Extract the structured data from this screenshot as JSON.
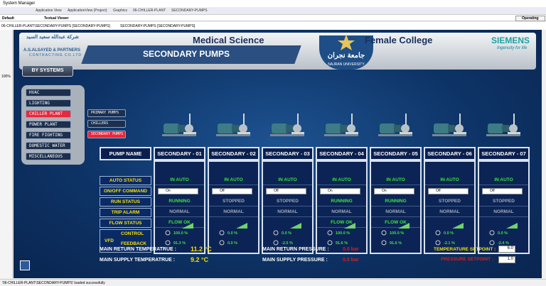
{
  "window": {
    "title": "System Manager",
    "breadcrumb": [
      "Application View",
      "ApplicationView (Project)",
      "Graphics",
      "06-CHILLER-PLANT",
      "SECONDARY-PUMPS"
    ],
    "tabs": [
      "Default",
      "Textual Viewer",
      "Operating"
    ],
    "path": [
      "06-CHILLER-PLANT\\SECONDARY-PUMPS [SECONDARY-PUMPS]",
      "SECONDARY-PUMPS [SECONDARY-PUMPS]"
    ],
    "zoom": "100%",
    "status": "'06-CHILLER-PLANT\\SECONDARY-PUMPS' loaded successfully"
  },
  "header": {
    "company_arabic": "شركة عبدالله سعيد السيد",
    "company": "A.S.ALSAYED & PARTNERS",
    "company_sub": "CONTRACTING CO.LTD",
    "left_title": "Medical Science",
    "right_title": "Female College",
    "page_title": "SECONDARY PUMPS",
    "university_arabic": "جامعة نجران",
    "university": "NAJRAN UNIVERSITY",
    "brand": "SIEMENS",
    "slogan": "Ingenuity for life"
  },
  "nav": {
    "by_systems": "BY SYSTEMS",
    "systems": [
      "HVAC",
      "LIGHTING",
      "CHILLER PLANT",
      "POWER PLANT",
      "FIRE FIGHTING",
      "DOMESTIC WATER",
      "MISCELLANEOUS"
    ],
    "active_system": 2,
    "subsystems": [
      "PRIMARY PUMPS",
      "CHILLERS",
      "SECONDARY PUMPS"
    ],
    "active_subsystem": 2
  },
  "table": {
    "corner": "PUMP NAME",
    "row_labels": [
      "AUTO STATUS",
      "ON/OFF COMMAND",
      "RUN STATUS",
      "TRIP ALARM",
      "FLOW STATUS",
      "VFD"
    ],
    "vfd_labels": [
      "CONTROL",
      "FEEDBACK"
    ],
    "pumps": [
      {
        "name": "SECONDARY - 01",
        "auto": "IN AUTO",
        "command": "On",
        "run": "RUNNING",
        "trip": "NORMAL",
        "flow": "FLOW OK",
        "control": "100.0 %",
        "feedback": "91.3 %"
      },
      {
        "name": "SECONDARY - 02",
        "auto": "IN AUTO",
        "command": "Off",
        "run": "STOPPED",
        "trip": "NORMAL",
        "flow": null,
        "control": "0.0 %",
        "feedback": "0.0 %"
      },
      {
        "name": "SECONDARY - 03",
        "auto": "IN AUTO",
        "command": "Off",
        "run": "STOPPED",
        "trip": "NORMAL",
        "flow": null,
        "control": "0.0 %",
        "feedback": "-2.5 %"
      },
      {
        "name": "SECONDARY - 04",
        "auto": "IN AUTO",
        "command": "On",
        "run": "RUNNING",
        "trip": "NORMAL",
        "flow": "FLOW OK",
        "control": "100.0 %",
        "feedback": "91.6 %"
      },
      {
        "name": "SECONDARY - 05",
        "auto": "IN AUTO",
        "command": "On",
        "run": "RUNNING",
        "trip": "NORMAL",
        "flow": "FLOW OK",
        "control": "100.0 %",
        "feedback": "91.6 %"
      },
      {
        "name": "SECONDARY - 06",
        "auto": "IN AUTO",
        "command": "Off",
        "run": "STOPPED",
        "trip": "NORMAL",
        "flow": null,
        "control": "0.0 %",
        "feedback": "-2.1 %"
      },
      {
        "name": "SECONDARY - 07",
        "auto": "IN AUTO",
        "command": "Off",
        "run": "STOPPED",
        "trip": "NORMAL",
        "flow": null,
        "control": "0.0 %",
        "feedback": "-2.4 %"
      }
    ]
  },
  "footer": {
    "return_temp_label": "MAIN RETURN TEMPERATRUE :",
    "return_temp": "11.2 °C",
    "supply_temp_label": "MAIN SUPPLY TEMPERATRUE :",
    "supply_temp": "9.2 °C",
    "return_pressure_label": "MAIN RETURN PRESSURE :",
    "return_pressure": "0.0 bar",
    "supply_pressure_label": "MAIN SUPPLY PRESSURE :",
    "supply_pressure": "0.0 bar",
    "temp_setpoint_label": "TEMPERATURE SETPOINT :",
    "temp_setpoint": "6.0",
    "pressure_setpoint_label": "PRESSURE SETPOINT :",
    "pressure_setpoint": "1.0"
  }
}
